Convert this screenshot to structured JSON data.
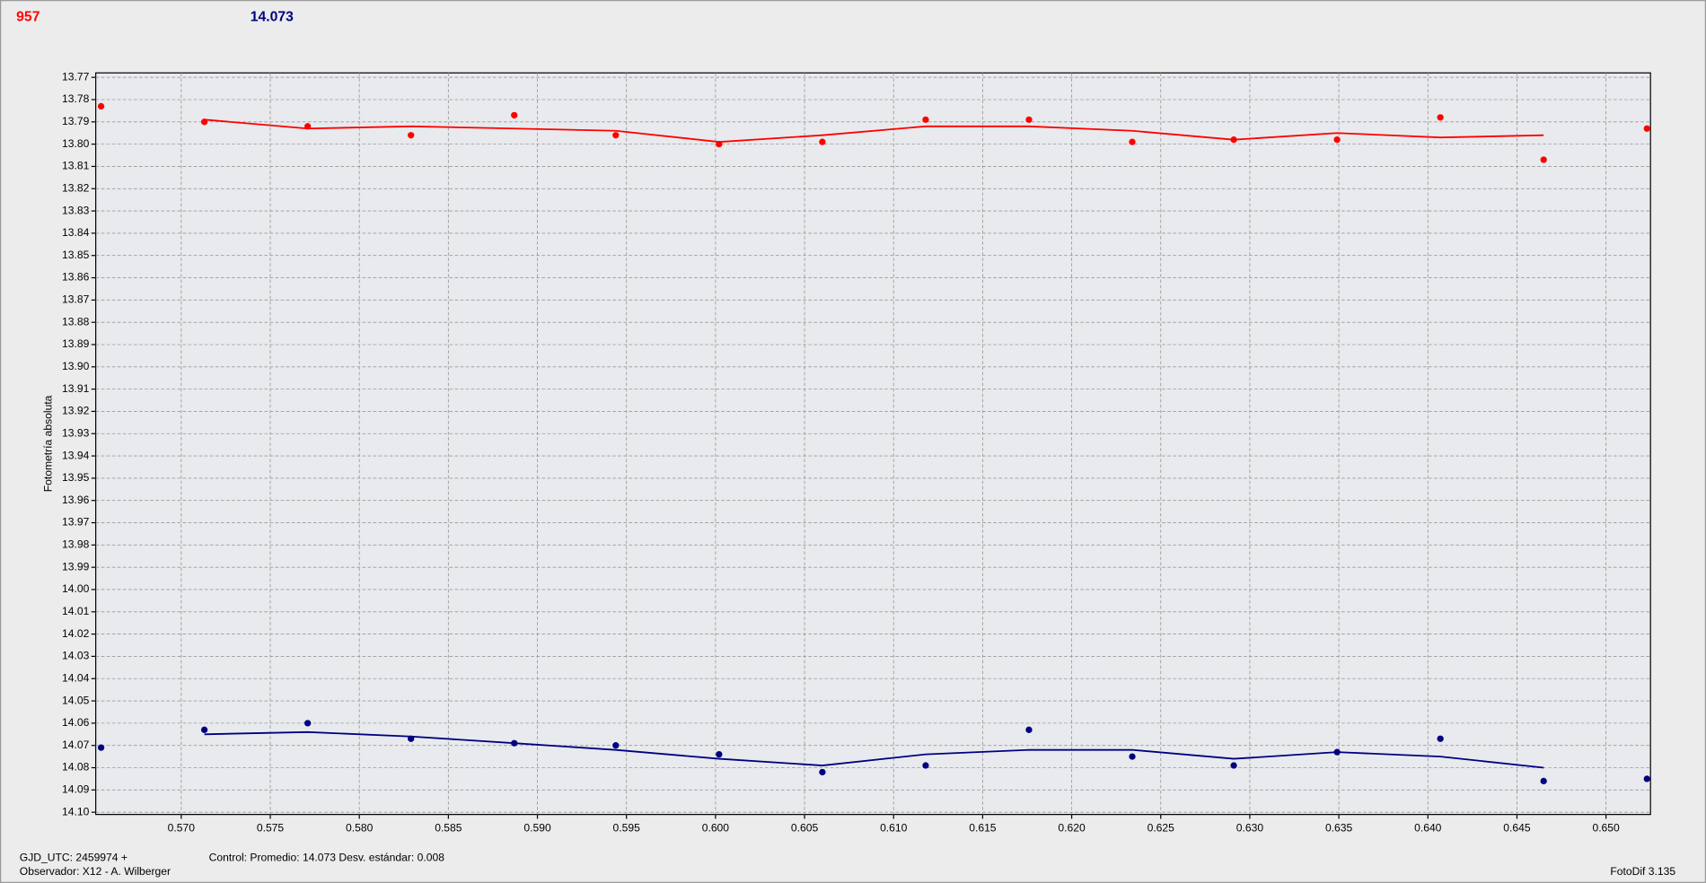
{
  "header": {
    "left": "957",
    "right": "14.073"
  },
  "footer": {
    "gjd": "GJD_UTC: 2459974 +",
    "observer": "Observador: X12 - A. Wilberger",
    "control": "Control: Promedio: 14.073  Desv. estándar: 0.008",
    "app": "FotoDif 3.135"
  },
  "chart_data": {
    "type": "scatter",
    "ylabel": "Fotometría absoluta",
    "xlim": [
      0.5652,
      0.6525
    ],
    "ylim": [
      13.768,
      14.101
    ],
    "y_inverted": true,
    "grid": true,
    "xticks": [
      {
        "value": 0.57,
        "label": "0.570"
      },
      {
        "value": 0.575,
        "label": "0.575"
      },
      {
        "value": 0.58,
        "label": "0.580"
      },
      {
        "value": 0.585,
        "label": "0.585"
      },
      {
        "value": 0.59,
        "label": "0.590"
      },
      {
        "value": 0.595,
        "label": "0.595"
      },
      {
        "value": 0.6,
        "label": "0.600"
      },
      {
        "value": 0.605,
        "label": "0.605"
      },
      {
        "value": 0.61,
        "label": "0.610"
      },
      {
        "value": 0.615,
        "label": "0.615"
      },
      {
        "value": 0.62,
        "label": "0.620"
      },
      {
        "value": 0.625,
        "label": "0.625"
      },
      {
        "value": 0.63,
        "label": "0.630"
      },
      {
        "value": 0.635,
        "label": "0.635"
      },
      {
        "value": 0.64,
        "label": "0.640"
      },
      {
        "value": 0.645,
        "label": "0.645"
      },
      {
        "value": 0.65,
        "label": "0.650"
      }
    ],
    "yticks": [
      13.77,
      13.78,
      13.79,
      {
        "value": 13.8,
        "label": "13.80"
      },
      13.81,
      13.82,
      13.83,
      13.84,
      13.85,
      13.86,
      13.87,
      13.88,
      13.89,
      {
        "value": 13.9,
        "label": "13.90"
      },
      13.91,
      13.92,
      13.93,
      13.94,
      13.95,
      13.96,
      13.97,
      13.98,
      13.99,
      {
        "value": 14.0,
        "label": "14.00"
      },
      14.01,
      14.02,
      14.03,
      14.04,
      14.05,
      14.06,
      14.07,
      14.08,
      14.09,
      {
        "value": 14.1,
        "label": "14.10"
      }
    ],
    "series": [
      {
        "color": "#ff0000",
        "mode": "markers",
        "x": [
          0.5655,
          0.5713,
          0.5771,
          0.5829,
          0.5887,
          0.5944,
          0.6002,
          0.606,
          0.6118,
          0.6176,
          0.6234,
          0.6291,
          0.6349,
          0.6407,
          0.6465,
          0.6523
        ],
        "values": [
          13.783,
          13.79,
          13.792,
          13.796,
          13.787,
          13.796,
          13.8,
          13.799,
          13.789,
          13.789,
          13.799,
          13.798,
          13.798,
          13.788,
          13.807,
          13.793
        ]
      },
      {
        "color": "#ff0000",
        "mode": "line",
        "x": [
          0.5713,
          0.5771,
          0.5829,
          0.5887,
          0.5944,
          0.6002,
          0.606,
          0.6118,
          0.6176,
          0.6234,
          0.6291,
          0.6349,
          0.6407,
          0.6465
        ],
        "values": [
          13.789,
          13.793,
          13.792,
          13.793,
          13.794,
          13.799,
          13.796,
          13.792,
          13.792,
          13.794,
          13.798,
          13.795,
          13.797,
          13.796
        ]
      },
      {
        "color": "#000080",
        "mode": "markers",
        "x": [
          0.5655,
          0.5713,
          0.5771,
          0.5829,
          0.5887,
          0.5944,
          0.6002,
          0.606,
          0.6118,
          0.6176,
          0.6234,
          0.6291,
          0.6349,
          0.6407,
          0.6465,
          0.6523
        ],
        "values": [
          14.071,
          14.063,
          14.06,
          14.067,
          14.069,
          14.07,
          14.074,
          14.082,
          14.079,
          14.063,
          14.075,
          14.079,
          14.073,
          14.067,
          14.086,
          14.085
        ]
      },
      {
        "color": "#000080",
        "mode": "line",
        "x": [
          0.5713,
          0.5771,
          0.5829,
          0.5887,
          0.5944,
          0.6002,
          0.606,
          0.6118,
          0.6176,
          0.6234,
          0.6291,
          0.6349,
          0.6407,
          0.6465
        ],
        "values": [
          14.065,
          14.064,
          14.066,
          14.069,
          14.072,
          14.076,
          14.079,
          14.074,
          14.072,
          14.072,
          14.076,
          14.073,
          14.075,
          14.08
        ]
      }
    ]
  }
}
